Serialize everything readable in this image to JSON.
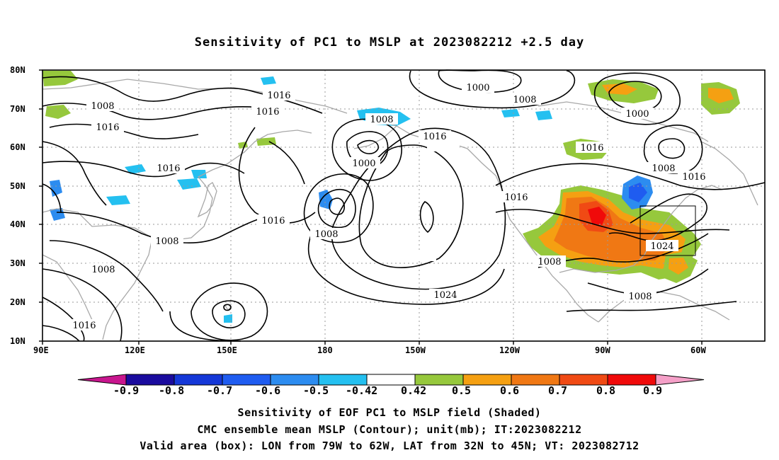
{
  "title": "Sensitivity of PC1 to MSLP at 2023082212 +2.5 day",
  "lat_labels": [
    "80N",
    "70N",
    "60N",
    "50N",
    "40N",
    "30N",
    "20N",
    "10N"
  ],
  "lon_labels": [
    "90E",
    "120E",
    "150E",
    "180",
    "150W",
    "120W",
    "90W",
    "60W"
  ],
  "contour_labels": [
    "1000",
    "1000",
    "1000",
    "1008",
    "1008",
    "1008",
    "1008",
    "1008",
    "1008",
    "1008",
    "1008",
    "1008",
    "1016",
    "1016",
    "1016",
    "1016",
    "1016",
    "1016",
    "1016",
    "1016",
    "1016",
    "1016",
    "1024",
    "1024"
  ],
  "colorbar": {
    "labels": [
      "-0.9",
      "-0.8",
      "-0.7",
      "-0.6",
      "-0.5",
      "-0.42",
      "0.42",
      "0.5",
      "0.6",
      "0.7",
      "0.8",
      "0.9"
    ],
    "colors": [
      "#c8168e",
      "#1a0b9e",
      "#1538d8",
      "#1f5cf0",
      "#2c8cf0",
      "#24c0f0",
      "#ffffff",
      "#96c83c",
      "#f5a012",
      "#f07814",
      "#f04a14",
      "#f00a0a",
      "#f5a0c8"
    ]
  },
  "valid_box": {
    "lon_from": "79W",
    "lon_to": "62W",
    "lat_from": "32N",
    "lat_to": "45N"
  },
  "captions": {
    "line1": "Sensitivity of EOF PC1 to MSLP field (Shaded)",
    "line2": "CMC ensemble mean MSLP (Contour); unit(mb); IT:2023082212",
    "line3": "Valid area (box): LON from 79W to 62W, LAT from 32N to 45N; VT: 2023082712"
  }
}
